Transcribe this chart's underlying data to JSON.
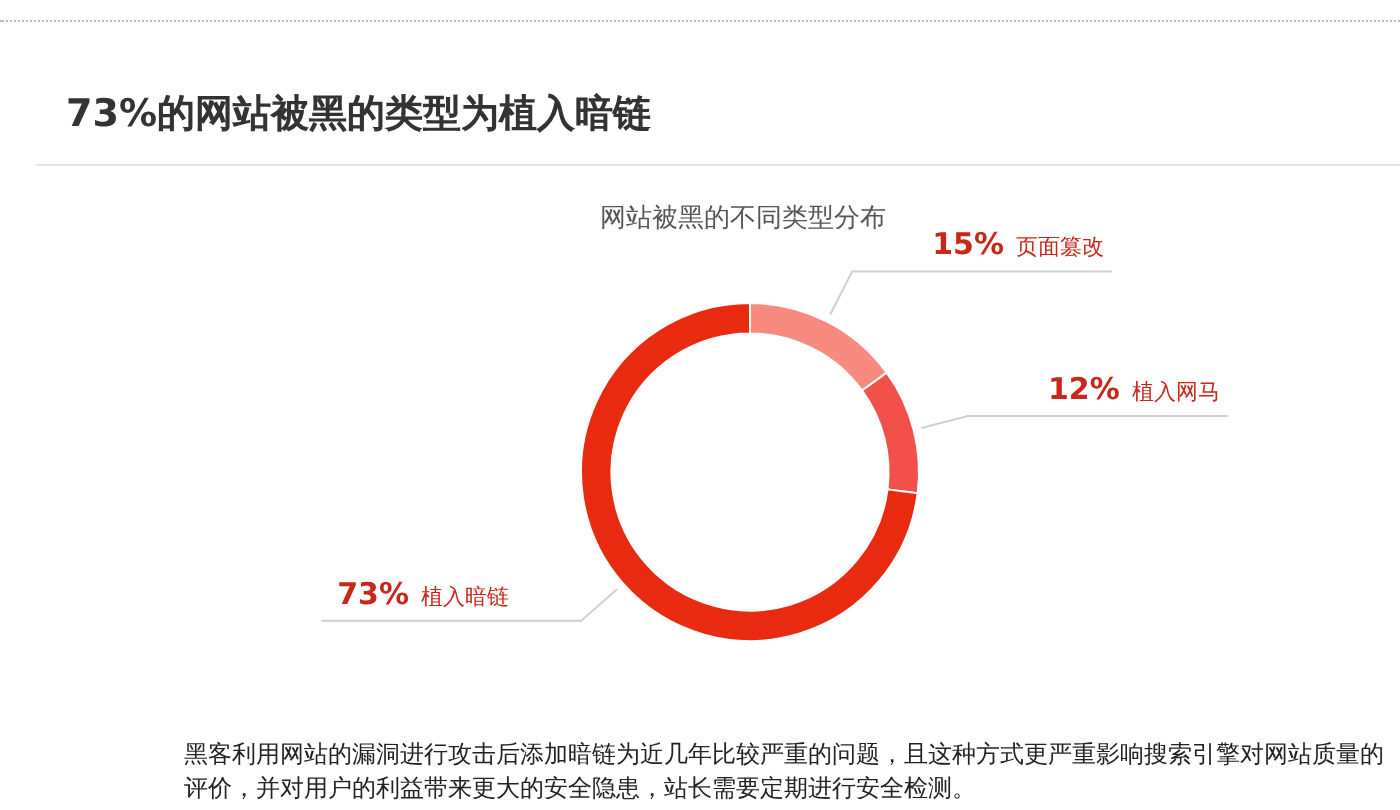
{
  "chart_data": {
    "type": "donut",
    "title": "73%的网站被黑的类型为植入暗链",
    "subtitle": "网站被黑的不同类型分布",
    "categories": [
      "页面篡改",
      "植入网马",
      "植入暗链"
    ],
    "values": [
      15,
      12,
      73
    ],
    "value_labels": [
      "15%",
      "12%",
      "73%"
    ],
    "colors": [
      "#f88a80",
      "#f2504a",
      "#e82a10"
    ],
    "legend": false,
    "annotations": [
      "黑客利用网站的漏洞进行攻击后添加暗链为近几年比较严重的问题，且这种方式更严重影响搜索引擎对网站质量的评价，并对用户的利益带来更大的安全隐患，站长需要定期进行安全检测。"
    ]
  }
}
